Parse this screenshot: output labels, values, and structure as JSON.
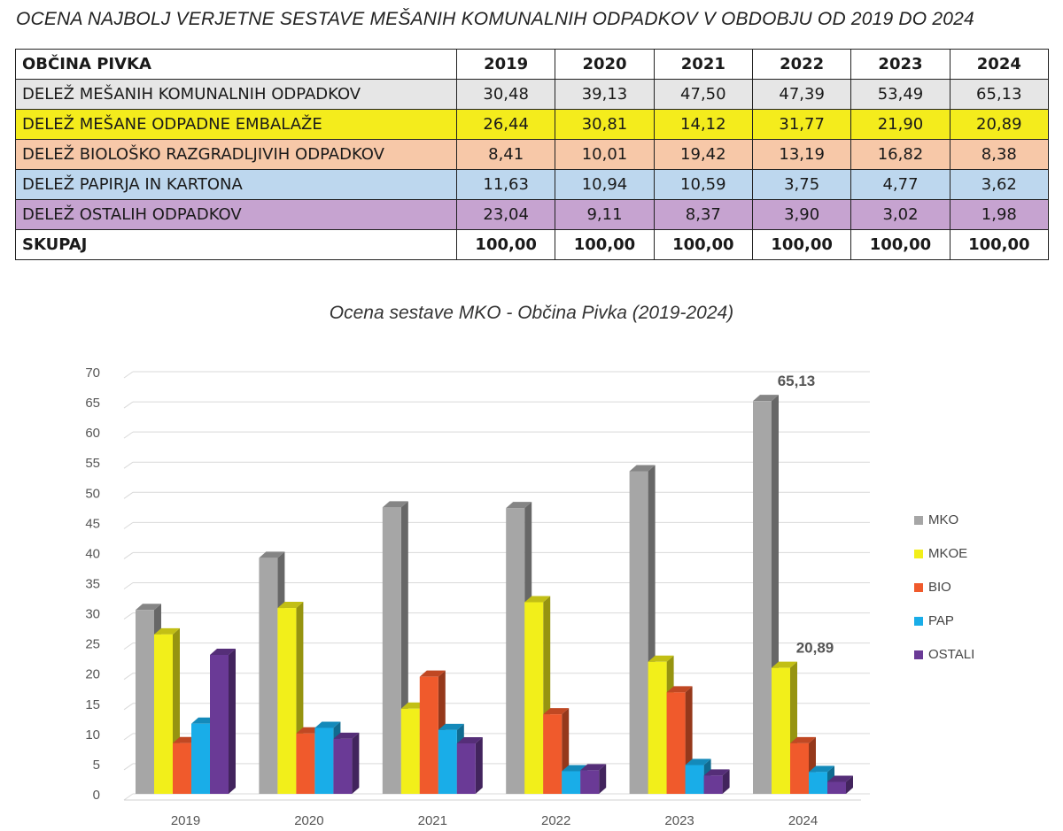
{
  "heading": "OCENA NAJBOLJ VERJETNE SESTAVE MEŠANIH KOMUNALNIH ODPADKOV V OBDOBJU OD 2019 DO 2024",
  "table": {
    "header": [
      "OBČINA PIVKA",
      "2019",
      "2020",
      "2021",
      "2022",
      "2023",
      "2024"
    ],
    "rows": [
      {
        "label": "DELEŽ MEŠANIH KOMUNALNIH ODPADKOV",
        "values": [
          "30,48",
          "39,13",
          "47,50",
          "47,39",
          "53,49",
          "65,13"
        ],
        "color": "#e6e6e6"
      },
      {
        "label": "DELEŽ MEŠANE ODPADNE EMBALAŽE",
        "values": [
          "26,44",
          "30,81",
          "14,12",
          "31,77",
          "21,90",
          "20,89"
        ],
        "color": "#f4ec1c"
      },
      {
        "label": "DELEŽ BIOLOŠKO RAZGRADLJIVIH ODPADKOV",
        "values": [
          "8,41",
          "10,01",
          "19,42",
          "13,19",
          "16,82",
          "8,38"
        ],
        "color": "#f7c8a8"
      },
      {
        "label": "DELEŽ PAPIRJA IN KARTONA",
        "values": [
          "11,63",
          "10,94",
          "10,59",
          "3,75",
          "4,77",
          "3,62"
        ],
        "color": "#bdd7ee"
      },
      {
        "label": "DELEŽ OSTALIH ODPADKOV",
        "values": [
          "23,04",
          "9,11",
          "8,37",
          "3,90",
          "3,02",
          "1,98"
        ],
        "color": "#c6a3d0"
      }
    ],
    "total": {
      "label": "SKUPAJ",
      "values": [
        "100,00",
        "100,00",
        "100,00",
        "100,00",
        "100,00",
        "100,00"
      ]
    }
  },
  "chart_data": {
    "type": "bar",
    "title": "Ocena sestave MKO - Občina Pivka (2019-2024)",
    "categories": [
      "2019",
      "2020",
      "2021",
      "2022",
      "2023",
      "2024"
    ],
    "series": [
      {
        "name": "MKO",
        "values": [
          30.48,
          39.13,
          47.5,
          47.39,
          53.49,
          65.13
        ],
        "color": "#a6a6a6"
      },
      {
        "name": "MKOE",
        "values": [
          26.44,
          30.81,
          14.12,
          31.77,
          21.9,
          20.89
        ],
        "color": "#f2ef1a"
      },
      {
        "name": "BIO",
        "values": [
          8.41,
          10.01,
          19.42,
          13.19,
          16.82,
          8.38
        ],
        "color": "#f05a2c"
      },
      {
        "name": "PAP",
        "values": [
          11.63,
          10.94,
          10.59,
          3.75,
          4.77,
          3.62
        ],
        "color": "#19ade8"
      },
      {
        "name": "OSTALI",
        "values": [
          23.04,
          9.11,
          8.37,
          3.9,
          3.02,
          1.98
        ],
        "color": "#6a3a96"
      }
    ],
    "ylim": [
      0,
      70
    ],
    "yticks": [
      0,
      5,
      10,
      15,
      20,
      25,
      30,
      35,
      40,
      45,
      50,
      55,
      60,
      65,
      70
    ],
    "grid": true,
    "legend": "right",
    "annotations": [
      {
        "series": "MKO",
        "category": "2024",
        "text": "65,13"
      },
      {
        "series": "MKOE",
        "category": "2024",
        "text": "20,89"
      }
    ]
  }
}
